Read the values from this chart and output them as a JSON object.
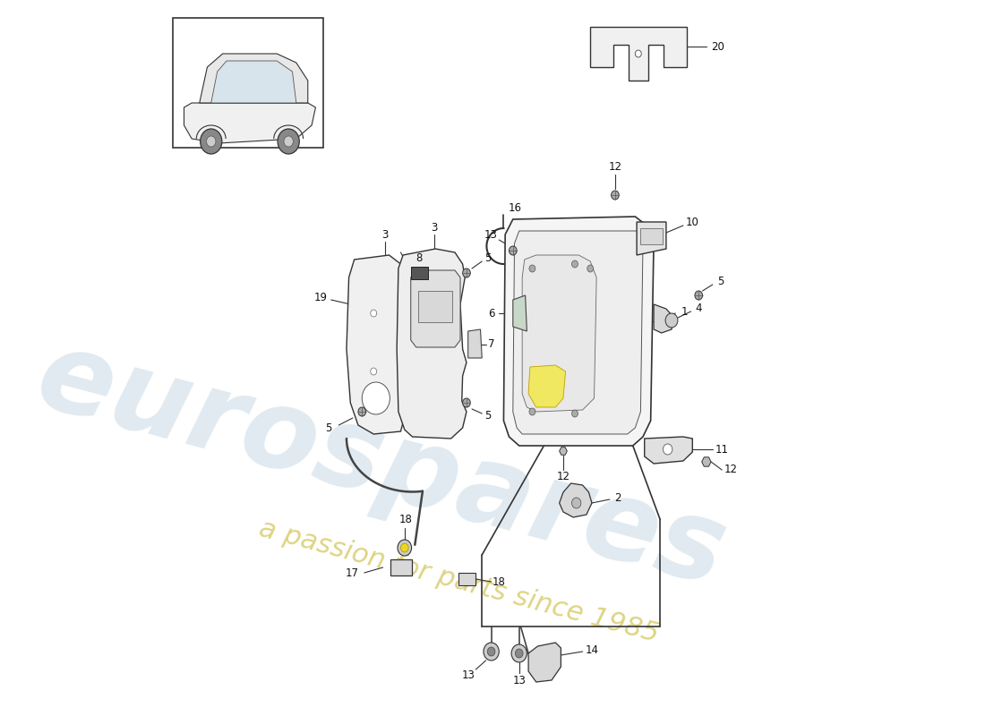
{
  "bg": "#ffffff",
  "line_color": "#333333",
  "part_color": "#e8e8e8",
  "pcb_color": "#f0f0f0",
  "wm1": "eurospares",
  "wm2": "a passion for parts since 1985",
  "wm1_color": "#b0c8d8",
  "wm2_color": "#c8b830",
  "wm1_alpha": 0.38,
  "wm2_alpha": 0.6,
  "label_fs": 8.5,
  "diagram_parts": {
    "part1_label": "1",
    "part2_label": "2",
    "part3_label": "3",
    "part4_label": "4",
    "part5_label": "5",
    "part6_label": "6",
    "part7_label": "7",
    "part8_label": "8",
    "part10_label": "10",
    "part11_label": "11",
    "part12_label": "12",
    "part13_label": "13",
    "part14_label": "14",
    "part16_label": "16",
    "part17_label": "17",
    "part18_label": "18",
    "part19_label": "19",
    "part20_label": "20"
  }
}
